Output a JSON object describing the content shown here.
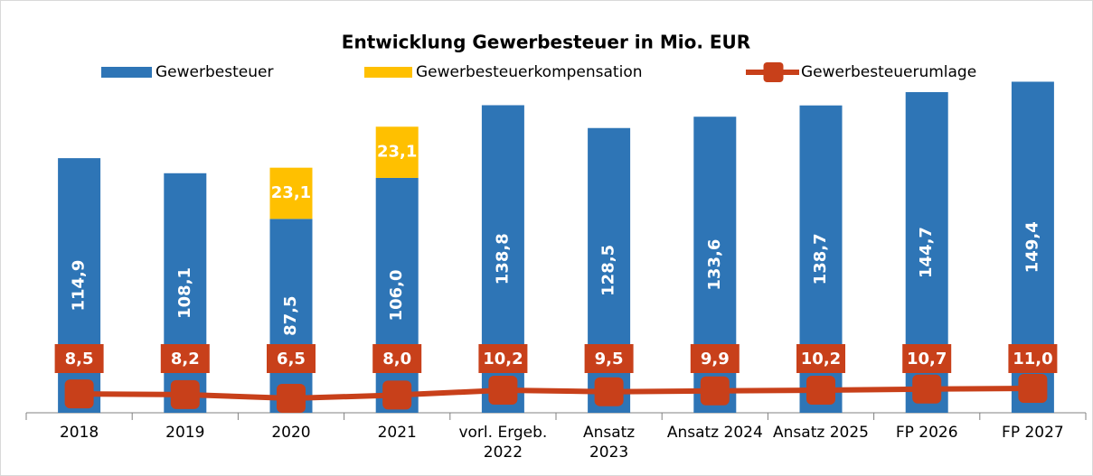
{
  "chart_data": {
    "type": "bar",
    "stacked": true,
    "title": "Entwicklung Gewerbesteuer in Mio. EUR",
    "categories": [
      "2018",
      "2019",
      "2020",
      "2021",
      "vorl. Ergeb.\n2022",
      "Ansatz\n2023",
      "Ansatz 2024",
      "Ansatz 2025",
      "FP 2026",
      "FP 2027"
    ],
    "series": [
      {
        "name": "Gewerbesteuer",
        "color": "#2e75b6",
        "type": "bar",
        "values": [
          114.9,
          108.1,
          87.5,
          106.0,
          138.8,
          128.5,
          133.6,
          138.7,
          144.7,
          149.4
        ],
        "value_labels": [
          "114,9",
          "108,1",
          "87,5",
          "106,0",
          "138,8",
          "128,5",
          "133,6",
          "138,7",
          "144,7",
          "149,4"
        ]
      },
      {
        "name": "Gewerbesteuerkompensation",
        "color": "#ffc000",
        "type": "bar",
        "values": [
          null,
          null,
          23.1,
          23.1,
          null,
          null,
          null,
          null,
          null,
          null
        ],
        "value_labels": [
          null,
          null,
          "23,1",
          "23,1",
          null,
          null,
          null,
          null,
          null,
          null
        ]
      },
      {
        "name": "Gewerbesteuerumlage",
        "color": "#c8401a",
        "type": "line",
        "values": [
          8.5,
          8.2,
          6.5,
          8.0,
          10.2,
          9.5,
          9.9,
          10.2,
          10.7,
          11.0
        ],
        "value_labels": [
          "8,5",
          "8,2",
          "6,5",
          "8,0",
          "10,2",
          "9,5",
          "9,9",
          "10,2",
          "10,7",
          "11,0"
        ]
      }
    ],
    "ylim": [
      0,
      150
    ],
    "legend": "top"
  }
}
